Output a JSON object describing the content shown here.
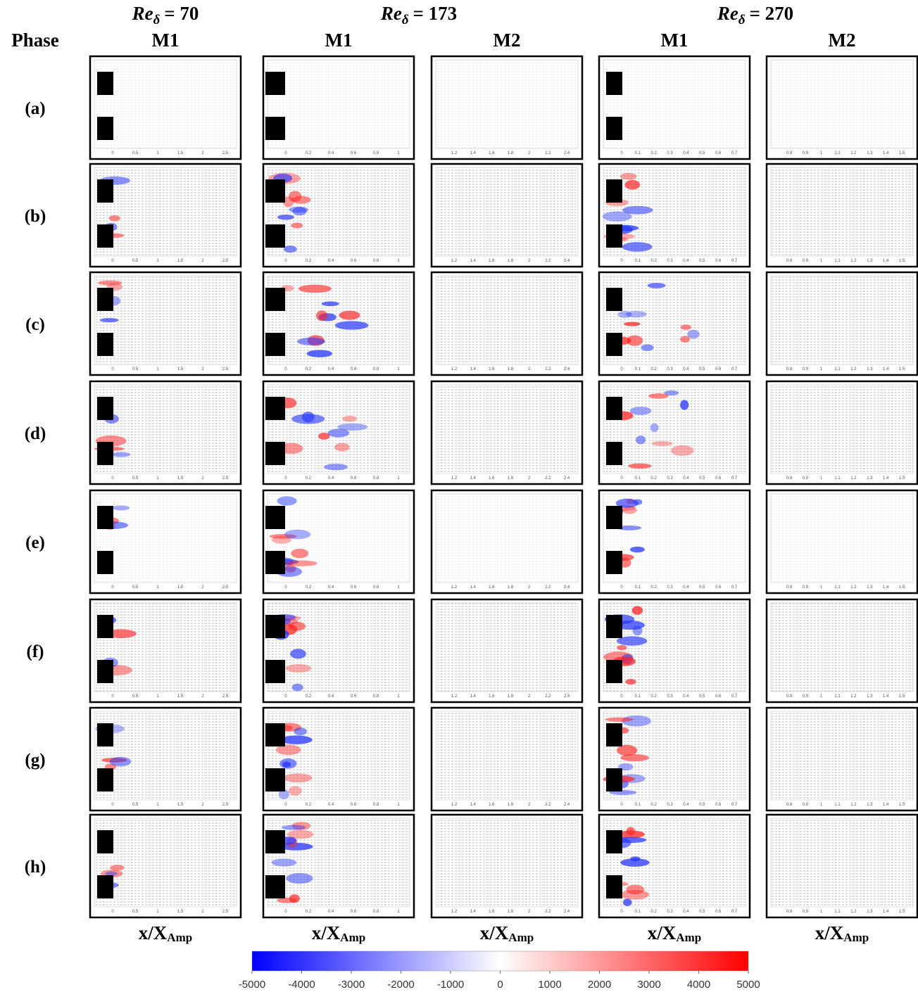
{
  "header": {
    "phase_label": "Phase"
  },
  "groups": [
    {
      "name": "Re",
      "subscript": "δ",
      "equals": "= 70"
    },
    {
      "name": "Re",
      "subscript": "δ",
      "equals": "= 173"
    },
    {
      "name": "Re",
      "subscript": "δ",
      "equals": "= 270"
    }
  ],
  "columns": [
    {
      "label": "M1",
      "ticks": [
        0,
        0.5,
        1,
        1.5,
        2,
        2.5
      ]
    },
    {
      "label": "M1",
      "ticks": [
        0,
        0.2,
        0.4,
        0.6,
        0.8,
        1
      ]
    },
    {
      "label": "M2",
      "ticks": [
        1.2,
        1.4,
        1.6,
        1.8,
        2,
        2.2,
        2.4
      ]
    },
    {
      "label": "M1",
      "ticks": [
        0,
        0.1,
        0.2,
        0.3,
        0.4,
        0.5,
        0.6,
        0.7
      ]
    },
    {
      "label": "M2",
      "ticks": [
        0.8,
        0.9,
        1,
        1.1,
        1.2,
        1.3,
        1.4,
        1.5
      ]
    }
  ],
  "rows": [
    "(a)",
    "(b)",
    "(c)",
    "(d)",
    "(e)",
    "(f)",
    "(g)",
    "(h)"
  ],
  "x_axis_label": {
    "main": "x/X",
    "sub": "Amp"
  },
  "colorbar": {
    "ticks": [
      -5000,
      -4000,
      -3000,
      -2000,
      -1000,
      0,
      1000,
      2000,
      3000,
      4000,
      5000
    ]
  }
}
